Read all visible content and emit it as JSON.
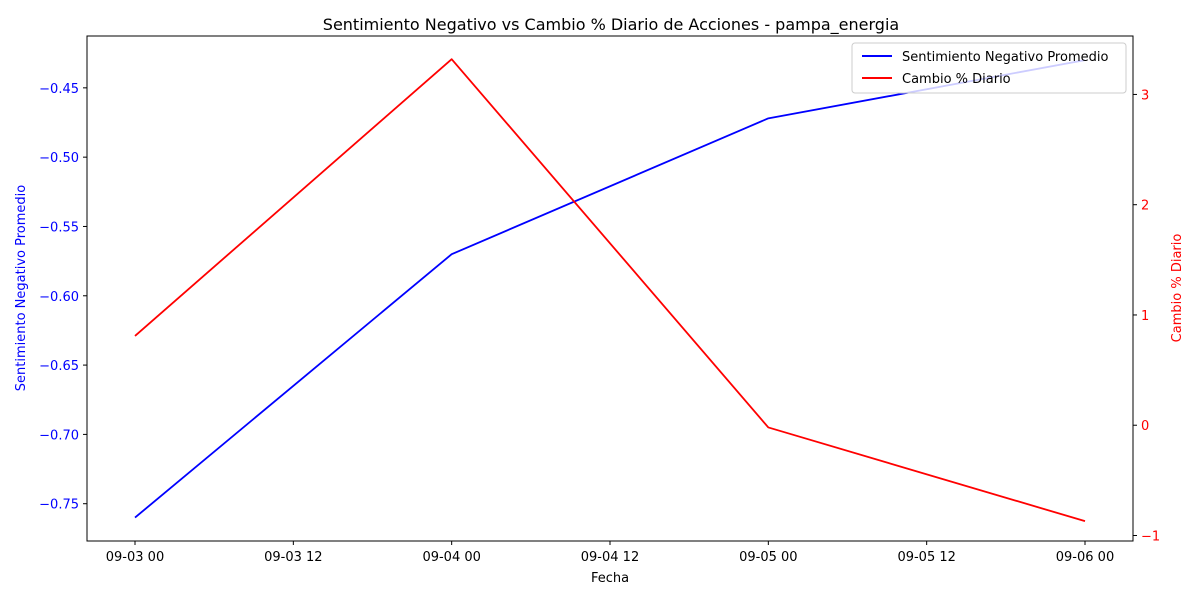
{
  "chart_data": {
    "type": "line",
    "title": "Sentimiento Negativo vs Cambio % Diario de Acciones - pampa_energia",
    "xlabel": "Fecha",
    "x": [
      "2024-09-03 00:00",
      "2024-09-04 00:00",
      "2024-09-05 00:00",
      "2024-09-06 00:00"
    ],
    "x_tick_labels": [
      "09-03 00",
      "09-03 12",
      "09-04 00",
      "09-04 12",
      "09-05 00",
      "09-05 12",
      "09-06 00"
    ],
    "y_left": {
      "label": "Sentimiento Negativo Promedio",
      "color": "#0000ff",
      "ticks": [
        -0.75,
        -0.7,
        -0.65,
        -0.6,
        -0.55,
        -0.5,
        -0.45
      ],
      "tick_labels": [
        "−0.75",
        "−0.70",
        "−0.65",
        "−0.60",
        "−0.55",
        "−0.50",
        "−0.45"
      ],
      "ylim": [
        -0.7769,
        -0.4126
      ]
    },
    "y_right": {
      "label": "Cambio % Diario",
      "color": "#ff0000",
      "ticks": [
        -1,
        0,
        1,
        2,
        3
      ],
      "tick_labels": [
        "−1",
        "0",
        "1",
        "2",
        "3"
      ],
      "ylim": [
        -1.05,
        3.53
      ]
    },
    "series": [
      {
        "name": "Sentimiento Negativo Promedio",
        "axis": "left",
        "color": "#0000ff",
        "values": [
          -0.76,
          -0.57,
          -0.472,
          -0.43
        ]
      },
      {
        "name": "Cambio % Diario",
        "axis": "right",
        "color": "#ff0000",
        "values": [
          0.81,
          3.32,
          -0.02,
          -0.87
        ]
      }
    ],
    "legend": {
      "position": "top-right",
      "entries": [
        "Sentimiento Negativo Promedio",
        "Cambio % Diario"
      ]
    },
    "grid": false
  }
}
